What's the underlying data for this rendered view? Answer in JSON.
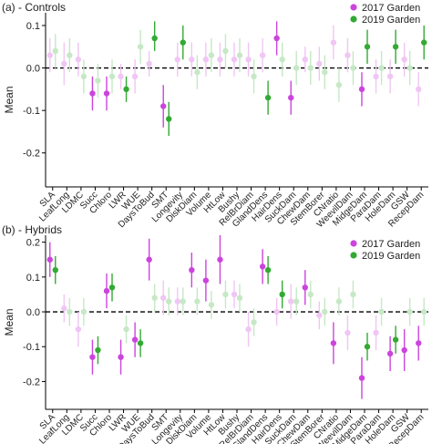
{
  "colors": {
    "garden2017": "#cc44dd",
    "garden2017_faded": "#f0c6f4",
    "garden2019": "#33aa33",
    "garden2019_faded": "#c6e8c6",
    "axis": "#000000",
    "zero_line": "#000000"
  },
  "chart_data": [
    {
      "type": "scatter",
      "title": "(a) - Controls",
      "xlabel": "",
      "ylabel": "Mean",
      "ylim": [
        -0.28,
        0.13
      ],
      "yticks": [
        -0.2,
        -0.1,
        0.0,
        0.1
      ],
      "ytick_labels": [
        "-0.2",
        "-0.1",
        "0.0",
        "0.1"
      ],
      "zero_line": true,
      "legend_position": "top-right",
      "categories": [
        "SLA",
        "LeafLong",
        "LDMC",
        "Succ",
        "Chloro",
        "LWR",
        "WUE",
        "DaysToBud",
        "SMT",
        "Longevity",
        "DiskDiam",
        "Volume",
        "HtLow",
        "Bushy",
        "RelBrDiam",
        "GlandDens",
        "HairDens",
        "SuckDam",
        "ChewDam",
        "StemBorer",
        "CNratio",
        "WeevilDam",
        "MidgeDam",
        "ParaDam",
        "HoleDam",
        "GSW",
        "RecepDam"
      ],
      "series": [
        {
          "name": "2017 Garden",
          "values": [
            0.03,
            0.01,
            0.02,
            -0.06,
            -0.06,
            -0.02,
            -0.02,
            0.01,
            -0.09,
            0.02,
            0.02,
            0.02,
            0.02,
            0.02,
            0.02,
            0.03,
            0.07,
            -0.07,
            0.02,
            0.01,
            0.06,
            0.03,
            -0.05,
            -0.02,
            -0.02,
            0.02,
            -0.05
          ],
          "err_low": [
            -0.01,
            -0.04,
            -0.02,
            -0.1,
            -0.1,
            -0.05,
            -0.06,
            -0.02,
            -0.14,
            -0.02,
            -0.02,
            -0.02,
            -0.02,
            -0.02,
            -0.02,
            -0.01,
            0.03,
            -0.11,
            -0.01,
            -0.03,
            0.02,
            -0.01,
            -0.09,
            -0.06,
            -0.06,
            -0.02,
            -0.09
          ],
          "err_high": [
            0.07,
            0.06,
            0.06,
            -0.02,
            -0.02,
            0.01,
            0.02,
            0.04,
            -0.04,
            0.06,
            0.06,
            0.06,
            0.06,
            0.06,
            0.06,
            0.07,
            0.11,
            -0.03,
            0.05,
            0.05,
            0.1,
            0.07,
            -0.01,
            0.02,
            0.02,
            0.06,
            -0.01
          ],
          "significant": [
            false,
            false,
            false,
            true,
            true,
            false,
            false,
            false,
            true,
            false,
            false,
            false,
            false,
            false,
            false,
            false,
            true,
            true,
            false,
            false,
            false,
            false,
            true,
            false,
            false,
            false,
            false
          ]
        },
        {
          "name": "2019 Garden",
          "values": [
            0.04,
            0.03,
            -0.02,
            -0.03,
            -0.02,
            -0.05,
            0.05,
            0.07,
            -0.12,
            0.06,
            -0.01,
            0.03,
            0.04,
            0.03,
            -0.02,
            -0.07,
            0.02,
            0.0,
            0.0,
            -0.01,
            -0.04,
            0.0,
            0.05,
            0.0,
            0.05,
            0.0,
            0.06
          ],
          "err_low": [
            0.0,
            -0.01,
            -0.06,
            -0.07,
            -0.06,
            -0.08,
            0.01,
            0.04,
            -0.16,
            0.02,
            -0.05,
            -0.01,
            0.0,
            -0.01,
            -0.06,
            -0.11,
            -0.02,
            -0.04,
            -0.04,
            -0.05,
            -0.08,
            -0.04,
            0.01,
            -0.04,
            0.01,
            -0.04,
            0.02
          ],
          "err_high": [
            0.08,
            0.07,
            0.02,
            0.01,
            0.02,
            -0.02,
            0.09,
            0.11,
            -0.08,
            0.1,
            0.03,
            0.07,
            0.08,
            0.07,
            0.02,
            -0.03,
            0.06,
            0.04,
            0.04,
            0.03,
            0.0,
            0.04,
            0.09,
            0.04,
            0.09,
            0.04,
            0.1
          ],
          "significant": [
            false,
            false,
            false,
            false,
            false,
            true,
            false,
            true,
            true,
            true,
            false,
            false,
            false,
            false,
            false,
            true,
            false,
            false,
            false,
            false,
            false,
            false,
            true,
            false,
            true,
            false,
            true
          ]
        }
      ]
    },
    {
      "type": "scatter",
      "title": "(b) - Hybrids",
      "xlabel": "",
      "ylabel": "Mean",
      "ylim": [
        -0.28,
        0.22
      ],
      "yticks": [
        -0.2,
        -0.1,
        0.0,
        0.1,
        0.2
      ],
      "ytick_labels": [
        "-0.2",
        "-0.1",
        "0.0",
        "0.1",
        "0.2"
      ],
      "zero_line": true,
      "legend_position": "top-right",
      "categories": [
        "SLA",
        "LeafLong",
        "LDMC",
        "Succ",
        "Chloro",
        "LWR",
        "WUE",
        "DaysToBud",
        "SMT",
        "Longevity",
        "DiskDiam",
        "Volume",
        "HtLow",
        "Bushy",
        "RelBrDiam",
        "GlandDens",
        "HairDens",
        "SuckDam",
        "ChewDam",
        "StemBorer",
        "CNratio",
        "WeevilDam",
        "MidgeDam",
        "ParaDam",
        "HoleDam",
        "GSW",
        "RecepDam"
      ],
      "series": [
        {
          "name": "2017 Garden",
          "values": [
            0.15,
            0.01,
            -0.05,
            -0.13,
            0.06,
            -0.13,
            -0.08,
            0.15,
            0.04,
            0.03,
            0.12,
            0.09,
            0.15,
            0.05,
            -0.05,
            0.13,
            0.0,
            0.03,
            0.07,
            -0.01,
            -0.09,
            -0.06,
            -0.19,
            -0.06,
            -0.12,
            -0.11,
            -0.09
          ],
          "err_low": [
            0.1,
            -0.03,
            -0.1,
            -0.18,
            0.01,
            -0.18,
            -0.13,
            0.09,
            -0.01,
            -0.01,
            0.07,
            0.03,
            0.08,
            0.01,
            -0.1,
            0.08,
            -0.04,
            -0.02,
            0.02,
            -0.05,
            -0.15,
            -0.11,
            -0.25,
            -0.11,
            -0.17,
            -0.17,
            -0.14
          ],
          "err_high": [
            0.2,
            0.05,
            0.0,
            -0.08,
            0.11,
            -0.08,
            -0.03,
            0.21,
            0.09,
            0.07,
            0.17,
            0.15,
            0.22,
            0.09,
            0.0,
            0.18,
            0.04,
            0.08,
            0.12,
            0.03,
            -0.03,
            -0.01,
            -0.13,
            -0.01,
            -0.07,
            -0.05,
            -0.04
          ],
          "significant": [
            true,
            false,
            false,
            true,
            true,
            true,
            true,
            true,
            false,
            false,
            true,
            true,
            true,
            false,
            false,
            true,
            false,
            false,
            true,
            false,
            true,
            false,
            true,
            false,
            true,
            true,
            true
          ]
        },
        {
          "name": "2019 Garden",
          "values": [
            0.12,
            0.0,
            0.0,
            -0.11,
            0.07,
            -0.05,
            -0.09,
            0.04,
            0.03,
            0.03,
            0.03,
            0.02,
            0.05,
            0.04,
            -0.03,
            0.12,
            0.05,
            0.03,
            0.05,
            0.0,
            0.03,
            0.05,
            -0.1,
            0.0,
            -0.08,
            0.0,
            0.0
          ],
          "err_low": [
            0.08,
            -0.04,
            -0.04,
            -0.15,
            0.03,
            -0.09,
            -0.13,
            0.0,
            -0.01,
            -0.01,
            -0.01,
            -0.02,
            0.01,
            0.0,
            -0.07,
            0.08,
            0.01,
            -0.01,
            0.01,
            -0.04,
            -0.01,
            0.01,
            -0.14,
            -0.04,
            -0.12,
            -0.04,
            -0.04
          ],
          "err_high": [
            0.16,
            0.04,
            0.04,
            -0.07,
            0.11,
            -0.01,
            -0.05,
            0.08,
            0.07,
            0.07,
            0.07,
            0.06,
            0.09,
            0.08,
            0.01,
            0.16,
            0.09,
            0.07,
            0.09,
            0.04,
            0.07,
            0.09,
            -0.06,
            0.04,
            -0.04,
            0.04,
            0.04
          ],
          "significant": [
            true,
            false,
            false,
            true,
            true,
            false,
            true,
            false,
            false,
            false,
            false,
            false,
            false,
            false,
            false,
            true,
            true,
            false,
            false,
            false,
            false,
            false,
            true,
            false,
            true,
            false,
            false
          ]
        }
      ]
    }
  ]
}
